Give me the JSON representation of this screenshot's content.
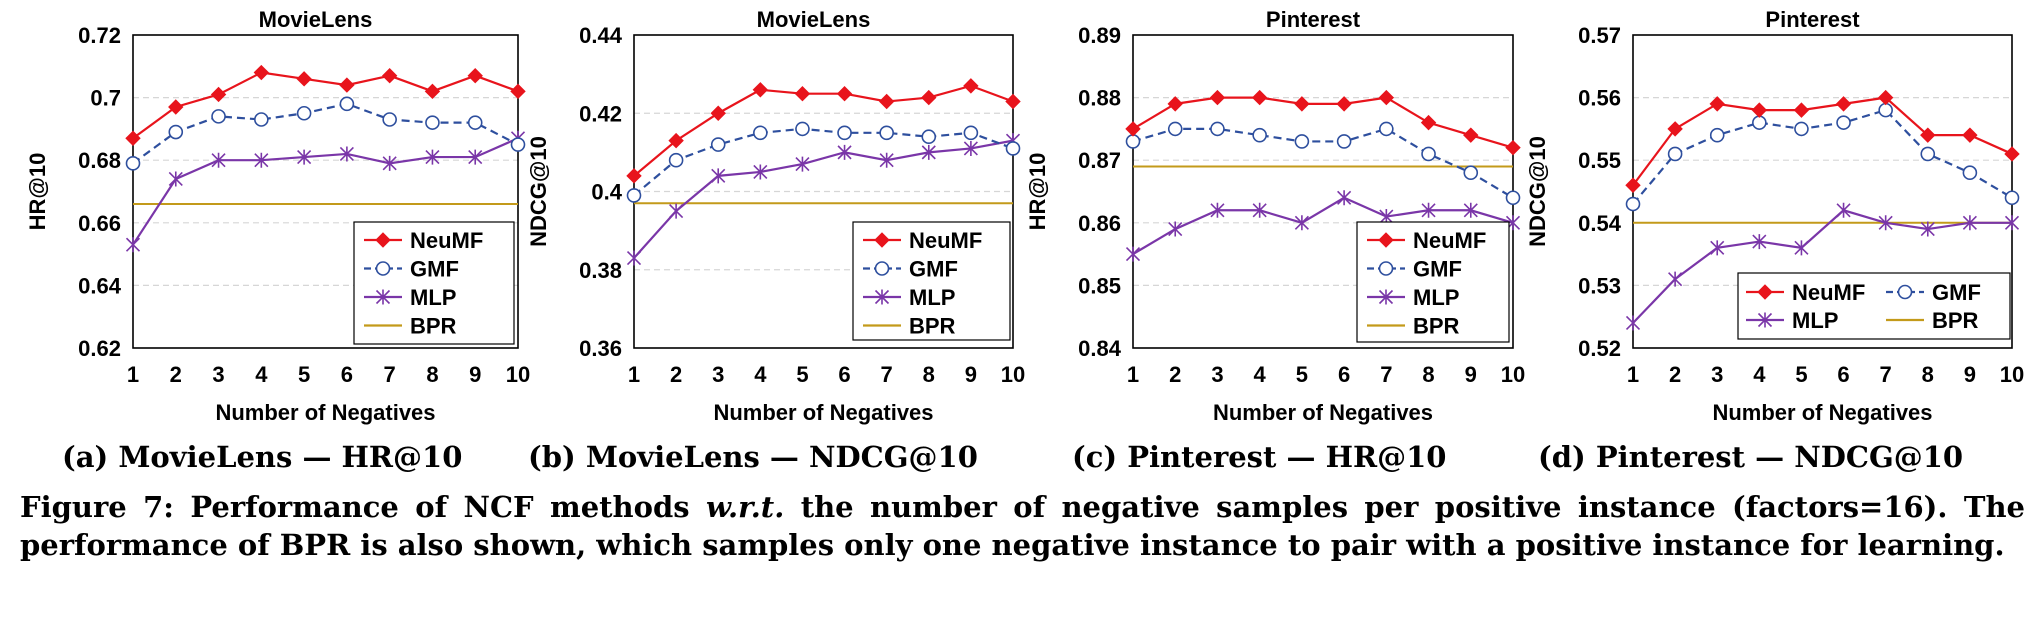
{
  "colors": {
    "NeuMF": "#e8141c",
    "GMF": "#2e4f9e",
    "MLP": "#7a36a8",
    "BPR": "#c39a1a",
    "grid": "#d6d6d6"
  },
  "chart_data": [
    {
      "type": "line",
      "title": "MovieLens",
      "xlabel": "Number of Negatives",
      "ylabel": "HR@10",
      "x": [
        1,
        2,
        3,
        4,
        5,
        6,
        7,
        8,
        9,
        10
      ],
      "ylim": [
        0.62,
        0.72
      ],
      "yticks": [
        "0.62",
        "0.64",
        "0.66",
        "0.68",
        "0.7",
        "0.72"
      ],
      "grid": true,
      "legend": "bottom-right, single column",
      "series": [
        {
          "name": "NeuMF",
          "marker": "filled-diamond",
          "values": [
            0.687,
            0.697,
            0.701,
            0.708,
            0.706,
            0.704,
            0.707,
            0.702,
            0.707,
            0.702
          ]
        },
        {
          "name": "GMF",
          "marker": "open-circle",
          "dashed": true,
          "values": [
            0.679,
            0.689,
            0.694,
            0.693,
            0.695,
            0.698,
            0.693,
            0.692,
            0.692,
            0.685
          ]
        },
        {
          "name": "MLP",
          "marker": "star",
          "values": [
            0.653,
            0.674,
            0.68,
            0.68,
            0.681,
            0.682,
            0.679,
            0.681,
            0.681,
            0.687
          ]
        },
        {
          "name": "BPR",
          "marker": "none",
          "values": [
            0.666,
            0.666,
            0.666,
            0.666,
            0.666,
            0.666,
            0.666,
            0.666,
            0.666,
            0.666
          ]
        }
      ]
    },
    {
      "type": "line",
      "title": "MovieLens",
      "xlabel": "Number of Negatives",
      "ylabel": "NDCG@10",
      "x": [
        1,
        2,
        3,
        4,
        5,
        6,
        7,
        8,
        9,
        10
      ],
      "ylim": [
        0.36,
        0.44
      ],
      "yticks": [
        "0.36",
        "0.38",
        "0.4",
        "0.42",
        "0.44"
      ],
      "grid": true,
      "legend": "bottom-right, single column",
      "series": [
        {
          "name": "NeuMF",
          "marker": "filled-diamond",
          "values": [
            0.404,
            0.413,
            0.42,
            0.426,
            0.425,
            0.425,
            0.423,
            0.424,
            0.427,
            0.423
          ]
        },
        {
          "name": "GMF",
          "marker": "open-circle",
          "dashed": true,
          "values": [
            0.399,
            0.408,
            0.412,
            0.415,
            0.416,
            0.415,
            0.415,
            0.414,
            0.415,
            0.411
          ]
        },
        {
          "name": "MLP",
          "marker": "star",
          "values": [
            0.383,
            0.395,
            0.404,
            0.405,
            0.407,
            0.41,
            0.408,
            0.41,
            0.411,
            0.413
          ]
        },
        {
          "name": "BPR",
          "marker": "none",
          "values": [
            0.397,
            0.397,
            0.397,
            0.397,
            0.397,
            0.397,
            0.397,
            0.397,
            0.397,
            0.397
          ]
        }
      ]
    },
    {
      "type": "line",
      "title": "Pinterest",
      "xlabel": "Number of Negatives",
      "ylabel": "HR@10",
      "x": [
        1,
        2,
        3,
        4,
        5,
        6,
        7,
        8,
        9,
        10
      ],
      "ylim": [
        0.84,
        0.89
      ],
      "yticks": [
        "0.84",
        "0.85",
        "0.86",
        "0.87",
        "0.88",
        "0.89"
      ],
      "grid": true,
      "legend": "bottom-right, single column",
      "series": [
        {
          "name": "NeuMF",
          "marker": "filled-diamond",
          "values": [
            0.875,
            0.879,
            0.88,
            0.88,
            0.879,
            0.879,
            0.88,
            0.876,
            0.874,
            0.872
          ]
        },
        {
          "name": "GMF",
          "marker": "open-circle",
          "dashed": true,
          "values": [
            0.873,
            0.875,
            0.875,
            0.874,
            0.873,
            0.873,
            0.875,
            0.871,
            0.868,
            0.864
          ]
        },
        {
          "name": "MLP",
          "marker": "star",
          "values": [
            0.855,
            0.859,
            0.862,
            0.862,
            0.86,
            0.864,
            0.861,
            0.862,
            0.862,
            0.86
          ]
        },
        {
          "name": "BPR",
          "marker": "none",
          "values": [
            0.869,
            0.869,
            0.869,
            0.869,
            0.869,
            0.869,
            0.869,
            0.869,
            0.869,
            0.869
          ]
        }
      ]
    },
    {
      "type": "line",
      "title": "Pinterest",
      "xlabel": "Number of Negatives",
      "ylabel": "NDCG@10",
      "x": [
        1,
        2,
        3,
        4,
        5,
        6,
        7,
        8,
        9,
        10
      ],
      "ylim": [
        0.52,
        0.57
      ],
      "yticks": [
        "0.52",
        "0.53",
        "0.54",
        "0.55",
        "0.56",
        "0.57"
      ],
      "grid": true,
      "legend": "bottom-right, two columns",
      "series": [
        {
          "name": "NeuMF",
          "marker": "filled-diamond",
          "values": [
            0.546,
            0.555,
            0.559,
            0.558,
            0.558,
            0.559,
            0.56,
            0.554,
            0.554,
            0.551
          ]
        },
        {
          "name": "GMF",
          "marker": "open-circle",
          "dashed": true,
          "values": [
            0.543,
            0.551,
            0.554,
            0.556,
            0.555,
            0.556,
            0.558,
            0.551,
            0.548,
            0.544
          ]
        },
        {
          "name": "MLP",
          "marker": "star",
          "values": [
            0.524,
            0.531,
            0.536,
            0.537,
            0.536,
            0.542,
            0.54,
            0.539,
            0.54,
            0.54
          ]
        },
        {
          "name": "BPR",
          "marker": "none",
          "values": [
            0.54,
            0.54,
            0.54,
            0.54,
            0.54,
            0.54,
            0.54,
            0.54,
            0.54,
            0.54
          ]
        }
      ]
    }
  ],
  "subcaptions": [
    "(a) MovieLens — HR@10",
    "(b) MovieLens — NDCG@10",
    "(c) Pinterest — HR@10",
    "(d) Pinterest — NDCG@10"
  ],
  "caption": {
    "prefix": "Figure 7: Performance of NCF methods ",
    "wrt": "w.r.t.",
    "suffix": " the number of negative samples per positive instance (factors=16). The performance of BPR is also shown, which samples only one negative instance to pair with a positive instance for learning."
  }
}
